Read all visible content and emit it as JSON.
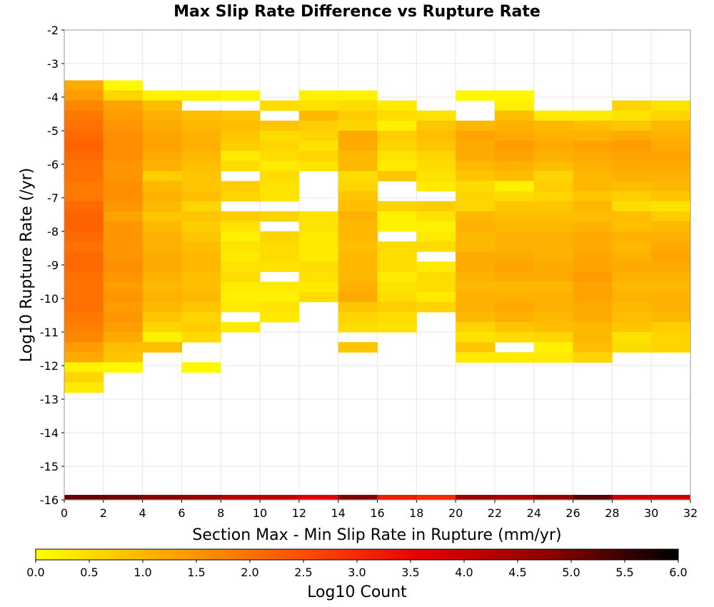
{
  "chart_data": {
    "type": "heatmap",
    "title": "Max Slip Rate Difference vs Rupture Rate",
    "xlabel": "Section Max - Min Slip Rate in Rupture (mm/yr)",
    "ylabel": "Log10 Rupture Rate (/yr)",
    "xlim": [
      0,
      32
    ],
    "ylim": [
      -16,
      -2
    ],
    "x_ticks": [
      "0",
      "2",
      "4",
      "6",
      "8",
      "10",
      "12",
      "14",
      "16",
      "18",
      "20",
      "22",
      "24",
      "26",
      "28",
      "30",
      "32"
    ],
    "y_ticks": [
      "-2",
      "-3",
      "-4",
      "-5",
      "-6",
      "-7",
      "-8",
      "-9",
      "-10",
      "-11",
      "-12",
      "-13",
      "-14",
      "-15",
      "-16"
    ],
    "grid": true,
    "x_bin_width": 2,
    "y_bin_height": 0.3,
    "y_bin_origin": -3.5,
    "x_bin_starts": [
      0,
      2,
      4,
      6,
      8,
      10,
      12,
      14,
      16,
      18,
      20,
      22,
      24,
      26,
      28,
      30
    ],
    "log10_count_grid": [
      [
        1.2,
        0.1,
        null,
        null,
        null,
        null,
        null,
        null,
        null,
        null,
        null,
        null,
        null,
        null,
        null,
        null
      ],
      [
        1.4,
        0.6,
        0.2,
        0.2,
        0.1,
        null,
        0.2,
        0.2,
        null,
        null,
        0.1,
        0.1,
        null,
        null,
        null,
        null
      ],
      [
        1.7,
        1.3,
        0.9,
        null,
        null,
        0.5,
        0.4,
        0.5,
        0.3,
        null,
        null,
        0.2,
        null,
        null,
        0.6,
        0.4
      ],
      [
        1.9,
        1.4,
        1.1,
        0.9,
        0.8,
        null,
        1.0,
        0.7,
        0.5,
        0.4,
        null,
        0.9,
        0.3,
        0.3,
        0.4,
        0.6
      ],
      [
        2.0,
        1.5,
        1.2,
        1.0,
        0.9,
        0.8,
        0.7,
        0.6,
        0.2,
        0.8,
        1.0,
        1.1,
        1.0,
        0.9,
        0.8,
        1.0
      ],
      [
        2.1,
        1.6,
        1.3,
        1.1,
        0.8,
        0.5,
        0.6,
        1.2,
        0.7,
        0.9,
        1.3,
        1.2,
        1.1,
        1.1,
        1.2,
        1.1
      ],
      [
        2.2,
        1.6,
        1.3,
        1.1,
        0.7,
        0.6,
        0.4,
        1.2,
        0.6,
        0.8,
        1.2,
        1.4,
        1.2,
        1.3,
        1.4,
        1.2
      ],
      [
        2.1,
        1.6,
        1.2,
        1.0,
        0.3,
        0.5,
        0.6,
        1.0,
        0.4,
        0.6,
        1.2,
        1.3,
        1.1,
        1.2,
        1.3,
        1.3
      ],
      [
        2.0,
        1.5,
        1.1,
        0.9,
        0.5,
        0.3,
        0.4,
        1.0,
        0.3,
        0.5,
        1.0,
        1.1,
        0.9,
        1.1,
        1.2,
        1.2
      ],
      [
        2.0,
        1.5,
        0.7,
        0.8,
        null,
        0.5,
        null,
        0.5,
        0.8,
        0.4,
        0.8,
        0.9,
        0.6,
        1.0,
        1.1,
        1.1
      ],
      [
        1.9,
        1.6,
        1.0,
        0.8,
        0.7,
        0.4,
        null,
        0.6,
        null,
        0.3,
        0.5,
        0.2,
        0.7,
        1.0,
        0.9,
        1.0
      ],
      [
        1.9,
        1.6,
        1.1,
        0.9,
        0.6,
        0.4,
        null,
        0.8,
        null,
        null,
        0.6,
        0.5,
        0.6,
        0.8,
        0.7,
        0.8
      ],
      [
        2.1,
        1.5,
        1.0,
        0.6,
        null,
        null,
        null,
        0.9,
        0.6,
        0.7,
        0.6,
        0.8,
        0.8,
        1.0,
        0.5,
        0.4
      ],
      [
        2.2,
        1.3,
        0.8,
        0.8,
        0.7,
        0.6,
        0.4,
        1.1,
        0.2,
        0.4,
        1.0,
        0.9,
        0.9,
        0.9,
        0.9,
        0.7
      ],
      [
        2.2,
        1.5,
        1.0,
        0.7,
        0.4,
        null,
        0.4,
        1.0,
        0.2,
        0.2,
        1.1,
        1.0,
        1.0,
        1.1,
        0.9,
        1.0
      ],
      [
        2.1,
        1.5,
        1.1,
        0.8,
        0.2,
        0.6,
        0.3,
        1.0,
        null,
        0.3,
        1.0,
        1.1,
        1.1,
        1.2,
        1.1,
        1.1
      ],
      [
        2.0,
        1.5,
        1.1,
        0.9,
        0.4,
        0.5,
        0.3,
        0.9,
        0.5,
        0.5,
        1.0,
        1.1,
        1.1,
        1.2,
        1.0,
        1.2
      ],
      [
        2.1,
        1.5,
        1.2,
        1.0,
        0.3,
        0.5,
        0.3,
        1.0,
        0.5,
        null,
        1.2,
        1.2,
        1.1,
        1.3,
        1.1,
        1.3
      ],
      [
        2.1,
        1.6,
        1.2,
        1.0,
        0.4,
        0.4,
        0.5,
        1.0,
        0.5,
        0.3,
        1.2,
        1.3,
        1.2,
        1.3,
        1.2,
        1.2
      ],
      [
        2.0,
        1.5,
        1.1,
        0.9,
        0.5,
        null,
        0.4,
        1.0,
        0.3,
        0.5,
        1.1,
        1.2,
        1.2,
        1.4,
        1.1,
        1.1
      ],
      [
        2.0,
        1.4,
        1.0,
        0.9,
        0.3,
        0.3,
        0.3,
        1.1,
        0.4,
        0.5,
        1.0,
        1.0,
        1.0,
        1.3,
        1.0,
        1.0
      ],
      [
        2.0,
        1.5,
        1.1,
        1.0,
        0.2,
        0.2,
        0.5,
        1.2,
        0.5,
        0.3,
        1.1,
        1.1,
        1.1,
        1.3,
        1.1,
        1.1
      ],
      [
        2.0,
        1.4,
        1.0,
        0.8,
        0.3,
        0.4,
        null,
        0.8,
        0.7,
        0.6,
        1.1,
        1.2,
        1.1,
        1.2,
        1.0,
        1.1
      ],
      [
        1.9,
        1.5,
        0.8,
        0.6,
        null,
        0.3,
        null,
        0.6,
        0.5,
        null,
        1.0,
        1.1,
        1.0,
        1.2,
        0.9,
        1.0
      ],
      [
        1.8,
        1.4,
        0.6,
        0.7,
        0.3,
        null,
        null,
        0.5,
        0.4,
        null,
        0.6,
        0.8,
        0.9,
        1.0,
        0.8,
        0.7
      ],
      [
        1.7,
        1.2,
        0.2,
        0.5,
        null,
        null,
        null,
        null,
        null,
        null,
        0.4,
        0.5,
        0.6,
        1.0,
        0.4,
        0.6
      ],
      [
        1.4,
        0.9,
        0.9,
        null,
        null,
        null,
        null,
        0.8,
        null,
        null,
        0.8,
        null,
        0.2,
        0.9,
        0.5,
        0.6
      ],
      [
        1.2,
        0.8,
        null,
        null,
        null,
        null,
        null,
        null,
        null,
        null,
        0.3,
        0.3,
        0.3,
        0.6,
        null,
        null
      ],
      [
        0.2,
        0.1,
        null,
        0.1,
        null,
        null,
        null,
        null,
        null,
        null,
        null,
        null,
        null,
        null,
        null,
        null
      ],
      [
        0.6,
        null,
        null,
        null,
        null,
        null,
        null,
        null,
        null,
        null,
        null,
        null,
        null,
        null,
        null,
        null
      ],
      [
        0.3,
        null,
        null,
        null,
        null,
        null,
        null,
        null,
        null,
        null,
        null,
        null,
        null,
        null,
        null,
        null
      ]
    ],
    "bottom_row_y": -16,
    "bottom_row_height": 0.15,
    "bottom_row_values": [
      5.1,
      5.0,
      4.8,
      4.6,
      4.2,
      4.1,
      3.7,
      4.9,
      3.2,
      3.0,
      4.6,
      4.4,
      4.7,
      5.2,
      4.0,
      4.0
    ],
    "colorbar": {
      "label": "Log10 Count",
      "min": 0.0,
      "max": 6.0,
      "ticks": [
        "0.0",
        "0.5",
        "1.0",
        "1.5",
        "2.0",
        "2.5",
        "3.0",
        "3.5",
        "4.0",
        "4.5",
        "5.0",
        "5.5",
        "6.0"
      ],
      "color_stops": [
        "#ffff00",
        "#ffaa00",
        "#ff5500",
        "#e60000",
        "#8b0000",
        "#000000"
      ]
    }
  }
}
